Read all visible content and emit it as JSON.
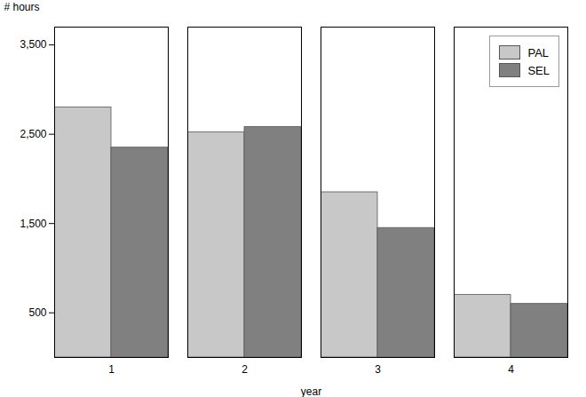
{
  "chart_data": {
    "type": "bar",
    "xlabel": "year",
    "ylabel": "# hours",
    "categories": [
      "1",
      "2",
      "3",
      "4"
    ],
    "series": [
      {
        "name": "PAL",
        "color": "#c8c8c8",
        "values": [
          2800,
          2520,
          1850,
          700
        ]
      },
      {
        "name": "SEL",
        "color": "#808080",
        "values": [
          2350,
          2580,
          1450,
          600
        ]
      }
    ],
    "ylim": [
      0,
      3700
    ],
    "yticks": [
      500,
      1500,
      2500,
      3500
    ],
    "grid": false,
    "legend": "upper right"
  }
}
